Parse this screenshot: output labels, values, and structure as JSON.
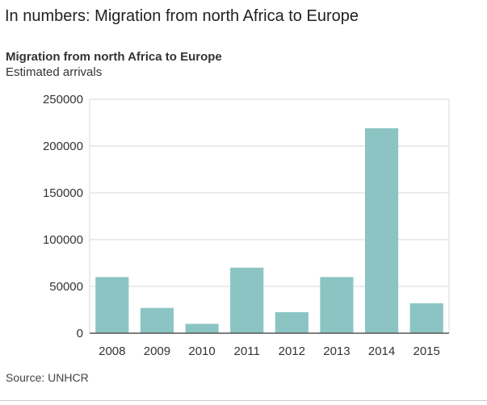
{
  "headline": "In numbers: Migration from north Africa to Europe",
  "chart_data": {
    "type": "bar",
    "title": "Migration from north Africa to Europe",
    "subtitle": "Estimated arrivals",
    "categories": [
      "2008",
      "2009",
      "2010",
      "2011",
      "2012",
      "2013",
      "2014",
      "2015"
    ],
    "values": [
      60000,
      27000,
      10000,
      70000,
      22500,
      60000,
      219000,
      32000
    ],
    "ylim": [
      0,
      250000
    ],
    "yticks": [
      0,
      50000,
      100000,
      150000,
      200000,
      250000
    ],
    "ytick_labels": [
      "0",
      "50000",
      "100000",
      "150000",
      "200000",
      "250000"
    ],
    "grid": true,
    "bar_color": "#8cc4c4",
    "grid_color": "#d9d9d9",
    "axis_color": "#555555"
  },
  "source": "Source: UNHCR"
}
